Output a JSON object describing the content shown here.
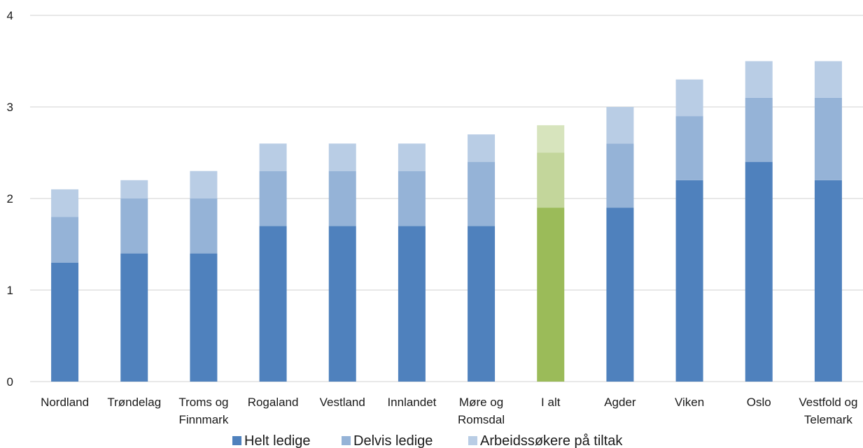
{
  "chart_data": {
    "type": "bar",
    "stacked": true,
    "title": "",
    "xlabel": "",
    "ylabel": "",
    "ylim": [
      0,
      4
    ],
    "yticks": [
      0,
      1,
      2,
      3,
      4
    ],
    "grid": true,
    "legend_position": "bottom",
    "categories": [
      [
        "Nordland"
      ],
      [
        "Trøndelag"
      ],
      [
        "Troms og",
        "Finnmark"
      ],
      [
        "Rogaland"
      ],
      [
        "Vestland"
      ],
      [
        "Innlandet"
      ],
      [
        "Møre og",
        "Romsdal"
      ],
      [
        "I alt"
      ],
      [
        "Agder"
      ],
      [
        "Viken"
      ],
      [
        "Oslo"
      ],
      [
        "Vestfold og",
        "Telemark"
      ]
    ],
    "series": [
      {
        "name": "Helt ledige",
        "color": "#4f81bd",
        "highlight_color": "#9bbb59",
        "values": [
          1.3,
          1.4,
          1.4,
          1.7,
          1.7,
          1.7,
          1.7,
          1.9,
          1.9,
          2.2,
          2.4,
          2.2
        ]
      },
      {
        "name": "Delvis ledige",
        "color": "#95b3d7",
        "highlight_color": "#c3d69b",
        "values": [
          0.5,
          0.6,
          0.6,
          0.6,
          0.6,
          0.6,
          0.7,
          0.6,
          0.7,
          0.7,
          0.7,
          0.9
        ]
      },
      {
        "name": "Arbeidssøkere på tiltak",
        "color": "#b9cde5",
        "highlight_color": "#d7e4bd",
        "values": [
          0.3,
          0.2,
          0.3,
          0.3,
          0.3,
          0.3,
          0.3,
          0.3,
          0.4,
          0.4,
          0.4,
          0.4
        ]
      }
    ],
    "highlight_category_index": 7
  }
}
